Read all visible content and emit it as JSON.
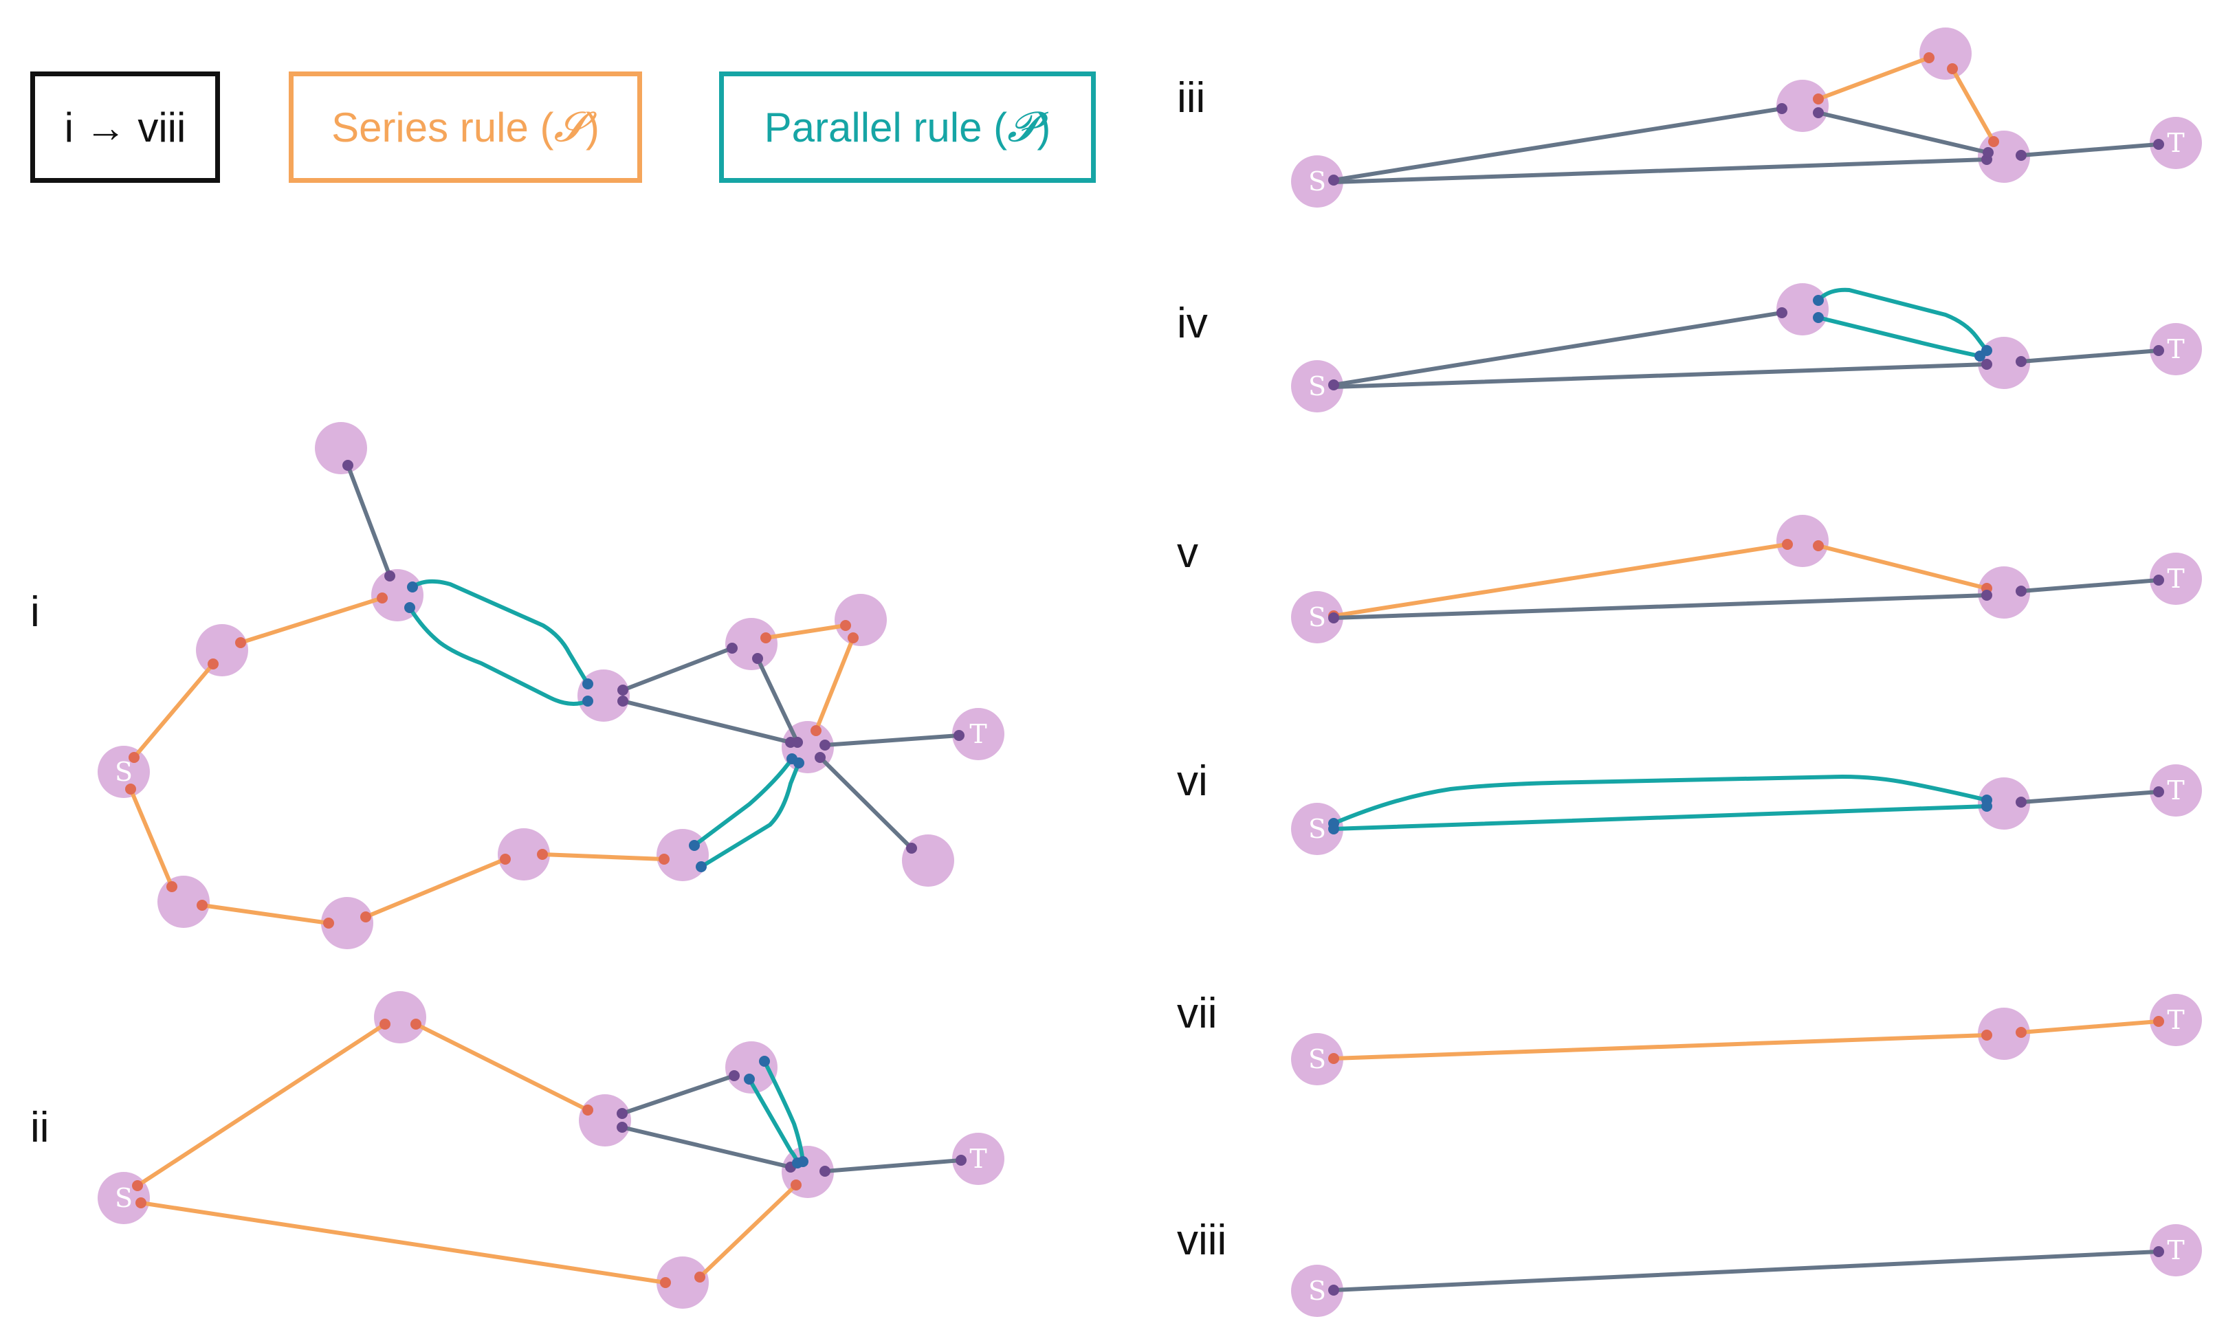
{
  "legend": {
    "steps": "i → viii",
    "series_prefix": "Series rule (",
    "series_symbol": "𝓢",
    "parallel_prefix": "Parallel rule (",
    "parallel_symbol": "𝓟",
    "close": ")"
  },
  "panels": {
    "i": "i",
    "ii": "ii",
    "iii": "iii",
    "iv": "iv",
    "v": "v",
    "vi": "vi",
    "vii": "vii",
    "viii": "viii"
  },
  "node_labels": {
    "source": "S",
    "sink": "T"
  },
  "colors": {
    "node_fill": "#dcb3de",
    "series_edge": "#f5a55a",
    "parallel_edge": "#16a5a5",
    "plain_edge": "#657588",
    "plain_dot": "#6b4a8c",
    "series_dot": "#e06a52",
    "parallel_dot": "#2a6aa6",
    "steps_border": "#111111"
  }
}
